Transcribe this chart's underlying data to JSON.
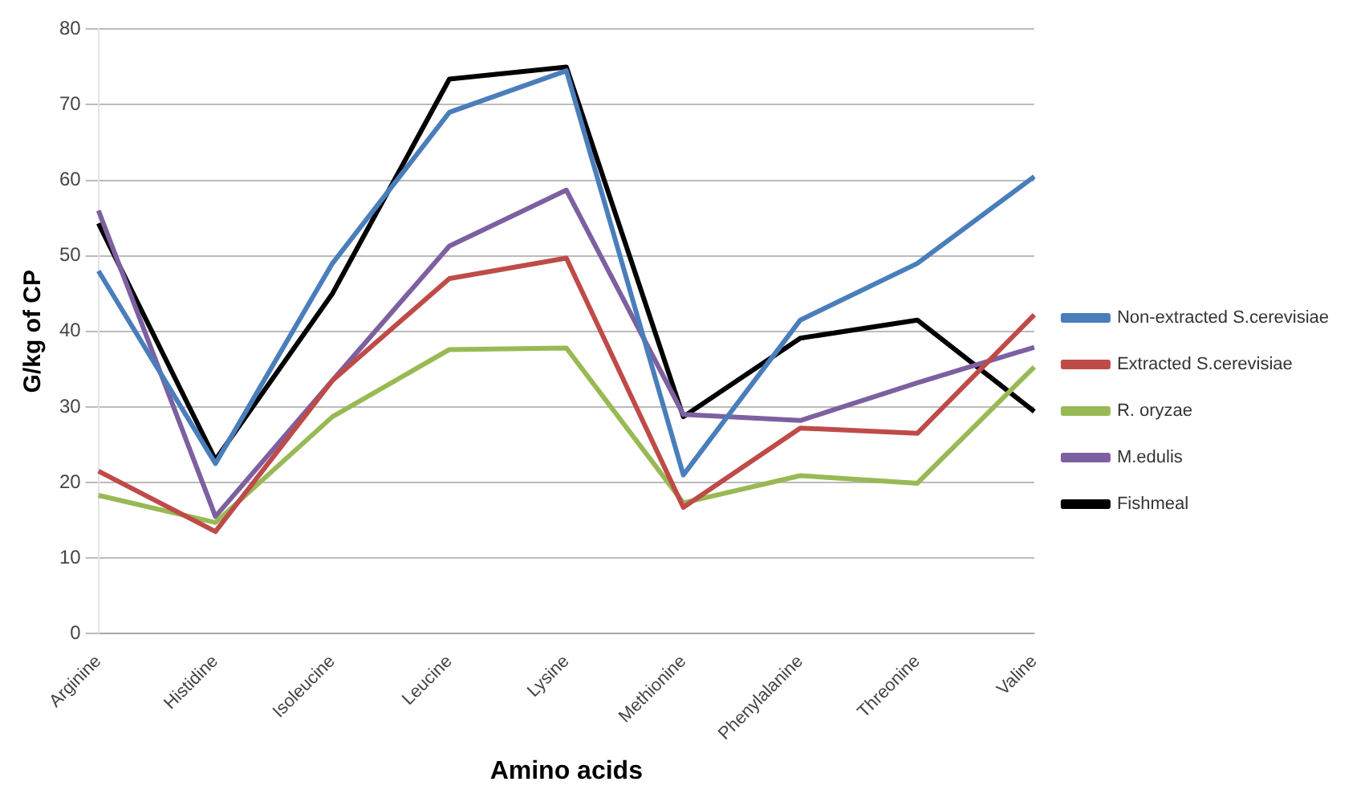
{
  "chart_data": {
    "type": "line",
    "xlabel": "Amino acids",
    "ylabel": "G/kg of CP",
    "categories": [
      "Arginine",
      "Histidine",
      "Isoleucine",
      "Leucine",
      "Lysine",
      "Methionine",
      "Phenylalanine",
      "Threonine",
      "Valine"
    ],
    "series": [
      {
        "name": "Non-extracted S.cerevisiae",
        "color": "#4a7ebb",
        "values": [
          48,
          22.5,
          49,
          69,
          74.5,
          21,
          41.5,
          49,
          60.5
        ]
      },
      {
        "name": "Extracted S.cerevisiae",
        "color": "#be4b48",
        "values": [
          21.5,
          13.5,
          33.5,
          47,
          49.7,
          16.7,
          27.2,
          26.5,
          42.2
        ]
      },
      {
        "name": "R. oryzae",
        "color": "#98b954",
        "values": [
          18.3,
          14.7,
          28.7,
          37.6,
          37.8,
          17.3,
          20.9,
          19.9,
          35.3
        ]
      },
      {
        "name": "M.edulis",
        "color": "#7d60a0",
        "values": [
          56,
          15.5,
          33.5,
          51.3,
          58.7,
          29,
          28.2,
          33.2,
          37.9
        ]
      },
      {
        "name": "Fishmeal",
        "color": "#000000",
        "values": [
          54.3,
          23,
          45,
          73.4,
          75,
          28.7,
          39.1,
          41.5,
          29.4
        ]
      }
    ],
    "ylim": [
      0,
      80
    ],
    "yticks": [
      0,
      10,
      20,
      30,
      40,
      50,
      60,
      70,
      80
    ],
    "grid": "y",
    "legend": "right",
    "marker": "none",
    "line_style": "solid"
  }
}
